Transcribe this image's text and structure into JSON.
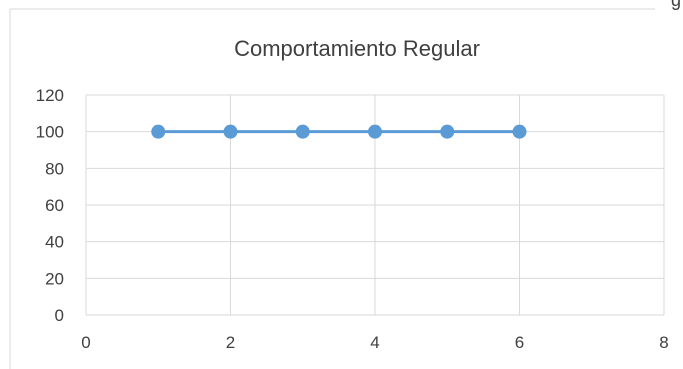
{
  "chart_data": {
    "type": "scatter",
    "title": "Comportamiento Regular",
    "xlabel": "",
    "ylabel": "",
    "x": [
      1,
      2,
      3,
      4,
      5,
      6
    ],
    "series": [
      {
        "values": [
          100,
          100,
          100,
          100,
          100,
          100
        ]
      }
    ],
    "xlim": [
      0,
      8
    ],
    "ylim": [
      0,
      120
    ],
    "x_ticks": [
      0,
      2,
      4,
      6,
      8
    ],
    "y_ticks": [
      0,
      20,
      40,
      60,
      80,
      100,
      120
    ],
    "grid": true,
    "legend": "none",
    "connect_points": true
  },
  "colors": {
    "series": "#5b9bd5",
    "grid": "#d9d9d9",
    "text": "#404040",
    "frame": "#d9d9d9"
  },
  "crop_fragment": "g"
}
